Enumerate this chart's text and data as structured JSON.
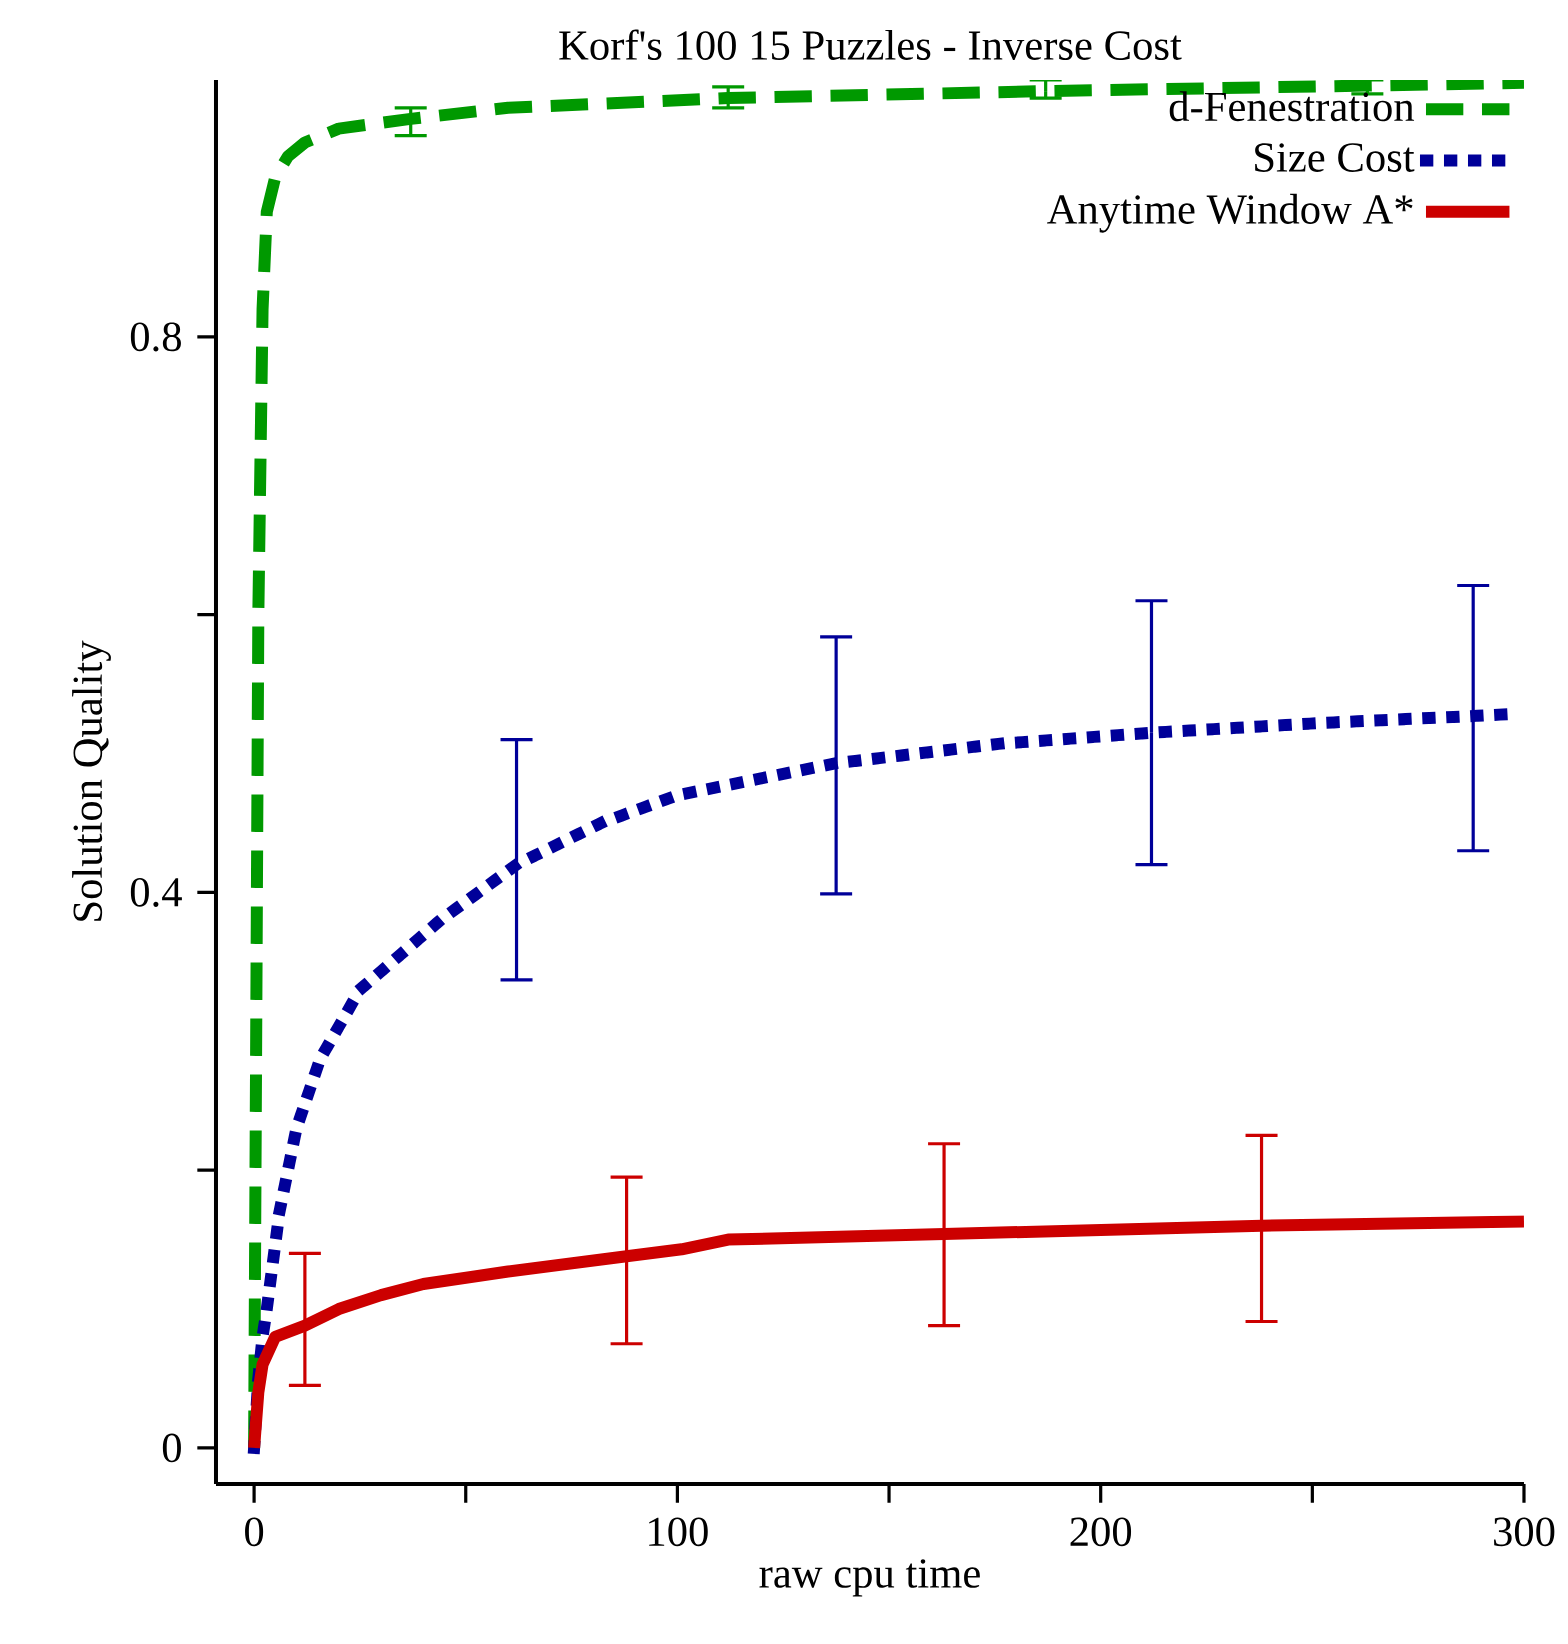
{
  "chart_data": {
    "type": "line",
    "title": "Korf's 100 15 Puzzles - Inverse Cost",
    "xlabel": "raw cpu time",
    "ylabel": "Solution Quality",
    "xlim": [
      -9,
      300
    ],
    "ylim": [
      -0.026,
      0.985
    ],
    "xticks": [
      0,
      {
        "value": 50,
        "label": null
      },
      100,
      {
        "value": 150,
        "label": null
      },
      200,
      {
        "value": 250,
        "label": null
      },
      300
    ],
    "yticks": [
      0,
      {
        "value": 0.2,
        "label": null
      },
      0.4,
      {
        "value": 0.6,
        "label": null
      },
      0.8
    ],
    "grid": false,
    "legend": "top right",
    "marker": "none",
    "series": [
      {
        "name": "d-Fenestration",
        "color": "#009900",
        "line_style": "dashed",
        "x": [
          0,
          1,
          2,
          3,
          5,
          8,
          12,
          20,
          37,
          60,
          112,
          187,
          263,
          300
        ],
        "values": [
          0,
          0.6,
          0.82,
          0.89,
          0.915,
          0.93,
          0.94,
          0.95,
          0.957,
          0.965,
          0.972,
          0.977,
          0.981,
          0.983
        ],
        "errors": [
          null,
          null,
          null,
          null,
          null,
          null,
          null,
          null,
          [
            0.945,
            0.965
          ],
          null,
          [
            0.965,
            0.98
          ],
          [
            0.972,
            0.985
          ],
          [
            0.975,
            0.985
          ],
          null
        ]
      },
      {
        "name": "Size Cost",
        "color": "#000099",
        "line_style": "dotted",
        "x": [
          0,
          1,
          2,
          3,
          6,
          10,
          15.6,
          25,
          44,
          62,
          82,
          100,
          137.5,
          176,
          212,
          252,
          288,
          300
        ],
        "values": [
          0,
          0.05,
          0.08,
          0.1,
          0.17,
          0.23,
          0.28,
          0.33,
          0.38,
          0.42,
          0.45,
          0.47,
          0.493,
          0.507,
          0.515,
          0.522,
          0.527,
          0.529
        ],
        "errors": [
          null,
          null,
          null,
          null,
          null,
          null,
          null,
          null,
          null,
          [
            0.337,
            0.51
          ],
          null,
          null,
          [
            0.399,
            0.584
          ],
          null,
          [
            0.42,
            0.61
          ],
          null,
          [
            0.43,
            0.621
          ],
          null
        ]
      },
      {
        "name": "Anytime Window A*",
        "color": "#cc0000",
        "line_style": "solid",
        "x": [
          0,
          1,
          2,
          5,
          12,
          20,
          30,
          40,
          60,
          88,
          101,
          112,
          163,
          238,
          300
        ],
        "values": [
          0,
          0.04,
          0.06,
          0.08,
          0.088,
          0.1,
          0.11,
          0.118,
          0.127,
          0.138,
          0.143,
          0.15,
          0.154,
          0.16,
          0.163
        ],
        "errors": [
          null,
          null,
          null,
          null,
          [
            0.045,
            0.14
          ],
          null,
          null,
          null,
          null,
          [
            0.075,
            0.195
          ],
          null,
          null,
          [
            0.088,
            0.219
          ],
          [
            0.091,
            0.225
          ],
          null
        ]
      }
    ]
  }
}
